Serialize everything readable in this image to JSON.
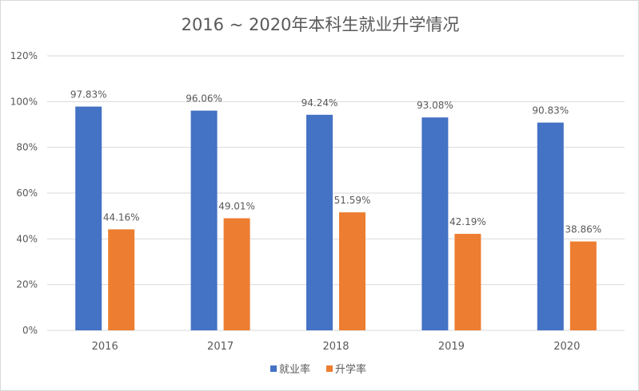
{
  "chart_data": {
    "type": "bar",
    "title": "2016 ~ 2020年本科生就业升学情况",
    "categories": [
      "2016",
      "2017",
      "2018",
      "2019",
      "2020"
    ],
    "series": [
      {
        "name": "就业率",
        "color": "#4472C4",
        "values": [
          97.83,
          96.06,
          94.24,
          93.08,
          90.83
        ],
        "labels": [
          "97.83%",
          "96.06%",
          "94.24%",
          "93.08%",
          "90.83%"
        ]
      },
      {
        "name": "升学率",
        "color": "#ED7D31",
        "values": [
          44.16,
          49.01,
          51.59,
          42.19,
          38.86
        ],
        "labels": [
          "44.16%",
          "49.01%",
          "51.59%",
          "42.19%",
          "38.86%"
        ]
      }
    ],
    "yticks": [
      "0%",
      "20%",
      "40%",
      "60%",
      "80%",
      "100%",
      "120%"
    ],
    "ylim": [
      0,
      120
    ],
    "grid": true,
    "legend_position": "bottom"
  }
}
